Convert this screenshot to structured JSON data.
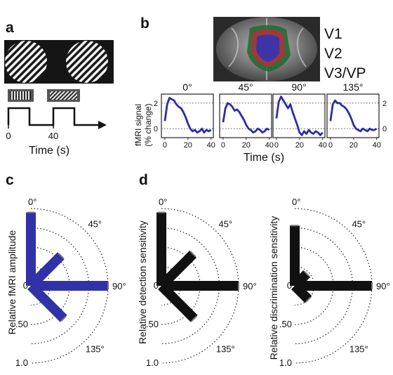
{
  "panels": {
    "a": {
      "label": "a",
      "axis_ticks": [
        "0",
        "40"
      ],
      "xlabel": "Time (s)"
    },
    "b": {
      "label": "b",
      "legend": [
        {
          "name": "V1",
          "color": "#2b2bb0"
        },
        {
          "name": "V2",
          "color": "#b8262a"
        },
        {
          "name": "V3/VP",
          "color": "#1f5a2a"
        }
      ],
      "ylabel_line1": "fMRI signal",
      "ylabel_line2": "(% change)",
      "xlabel": "Time (s)"
    },
    "c": {
      "label": "c",
      "ylabel": "Relative fMRI amplitude"
    },
    "d": {
      "label": "d",
      "ylabel_left": "Relative detection sensitivity",
      "ylabel_right": "Relative discrimination sensitivity"
    }
  },
  "chart_data": [
    {
      "type": "line",
      "subplot": "0°",
      "title": "0°",
      "xlabel": "Time (s)",
      "ylabel": "fMRI signal (% change)",
      "xticks": [
        0,
        20,
        40
      ],
      "yticks": [
        0,
        2
      ],
      "xlim": [
        -3,
        42
      ],
      "ylim": [
        -0.7,
        2.7
      ],
      "color": "#2c2ca8",
      "x": [
        0,
        2,
        4,
        6,
        8,
        10,
        12,
        14,
        16,
        18,
        20,
        22,
        24,
        26,
        28,
        30,
        32,
        34,
        36,
        38,
        40
      ],
      "y": [
        0.6,
        1.9,
        2.4,
        2.3,
        2.2,
        1.9,
        1.7,
        1.6,
        1.3,
        0.9,
        0.4,
        0.0,
        -0.2,
        -0.1,
        -0.3,
        -0.2,
        0.0,
        -0.3,
        -0.1,
        -0.2,
        -0.1
      ]
    },
    {
      "type": "line",
      "subplot": "45°",
      "title": "45°",
      "xticks": [
        0,
        20,
        40
      ],
      "xlim": [
        -3,
        42
      ],
      "ylim": [
        -0.7,
        2.7
      ],
      "color": "#2c2ca8",
      "x": [
        0,
        2,
        4,
        6,
        8,
        10,
        12,
        14,
        16,
        18,
        20,
        22,
        24,
        26,
        28,
        30,
        32,
        34,
        36,
        38,
        40
      ],
      "y": [
        0.5,
        1.6,
        2.0,
        1.9,
        1.7,
        1.4,
        1.5,
        1.3,
        1.0,
        0.7,
        0.3,
        0.0,
        -0.1,
        -0.3,
        -0.2,
        0.0,
        -0.1,
        -0.3,
        -0.2,
        0.0,
        -0.1
      ]
    },
    {
      "type": "line",
      "subplot": "90°",
      "title": "90°",
      "xticks": [
        0,
        20,
        40
      ],
      "xlim": [
        -3,
        42
      ],
      "ylim": [
        -0.7,
        2.7
      ],
      "color": "#2c2ca8",
      "x": [
        0,
        2,
        4,
        6,
        8,
        10,
        12,
        14,
        16,
        18,
        20,
        22,
        24,
        26,
        28,
        30,
        32,
        34,
        36,
        38,
        40
      ],
      "y": [
        0.8,
        2.1,
        2.5,
        2.2,
        1.9,
        1.6,
        1.9,
        1.3,
        0.8,
        0.3,
        -0.3,
        -0.5,
        -0.2,
        -0.4,
        -0.1,
        -0.3,
        -0.4,
        -0.2,
        -0.3,
        -0.5,
        -0.3
      ]
    },
    {
      "type": "line",
      "subplot": "135°",
      "title": "135°",
      "xticks": [
        0,
        20,
        40
      ],
      "yticks": [
        0,
        2
      ],
      "xlim": [
        -3,
        42
      ],
      "ylim": [
        -0.7,
        2.7
      ],
      "color": "#2c2ca8",
      "x": [
        0,
        2,
        4,
        6,
        8,
        10,
        12,
        14,
        16,
        18,
        20,
        22,
        24,
        26,
        28,
        30,
        32,
        34,
        36,
        38,
        40
      ],
      "y": [
        0.6,
        1.9,
        2.2,
        2.0,
        2.0,
        1.8,
        1.7,
        1.5,
        1.2,
        0.8,
        0.3,
        0.0,
        -0.1,
        -0.2,
        0.0,
        -0.1,
        -0.2,
        0.0,
        -0.1,
        -0.1,
        0.0
      ]
    },
    {
      "type": "polar_bar",
      "subplot": "c",
      "ylabel": "Relative fMRI amplitude",
      "angles": [
        "0°",
        "45°",
        "90°",
        "135°"
      ],
      "values": [
        0.95,
        0.55,
        1.0,
        0.6
      ],
      "radial_ticks": [
        "0",
        ".50",
        "1.0"
      ],
      "color": "#3131a8"
    },
    {
      "type": "polar_bar",
      "subplot": "d-detection",
      "ylabel": "Relative detection sensitivity",
      "angles": [
        "0°",
        "45°",
        "90°",
        "135°"
      ],
      "values": [
        0.95,
        0.58,
        1.0,
        0.6
      ],
      "radial_ticks": [
        "0",
        ".50",
        "1.0"
      ],
      "color": "#111111"
    },
    {
      "type": "polar_bar",
      "subplot": "d-discrimination",
      "ylabel": "Relative discrimination sensitivity",
      "angles": [
        "0°",
        "45°",
        "90°",
        "135°"
      ],
      "values": [
        0.78,
        0.22,
        1.0,
        0.25
      ],
      "radial_ticks": [
        "0",
        ".50",
        "1.0"
      ],
      "color": "#111111"
    }
  ]
}
